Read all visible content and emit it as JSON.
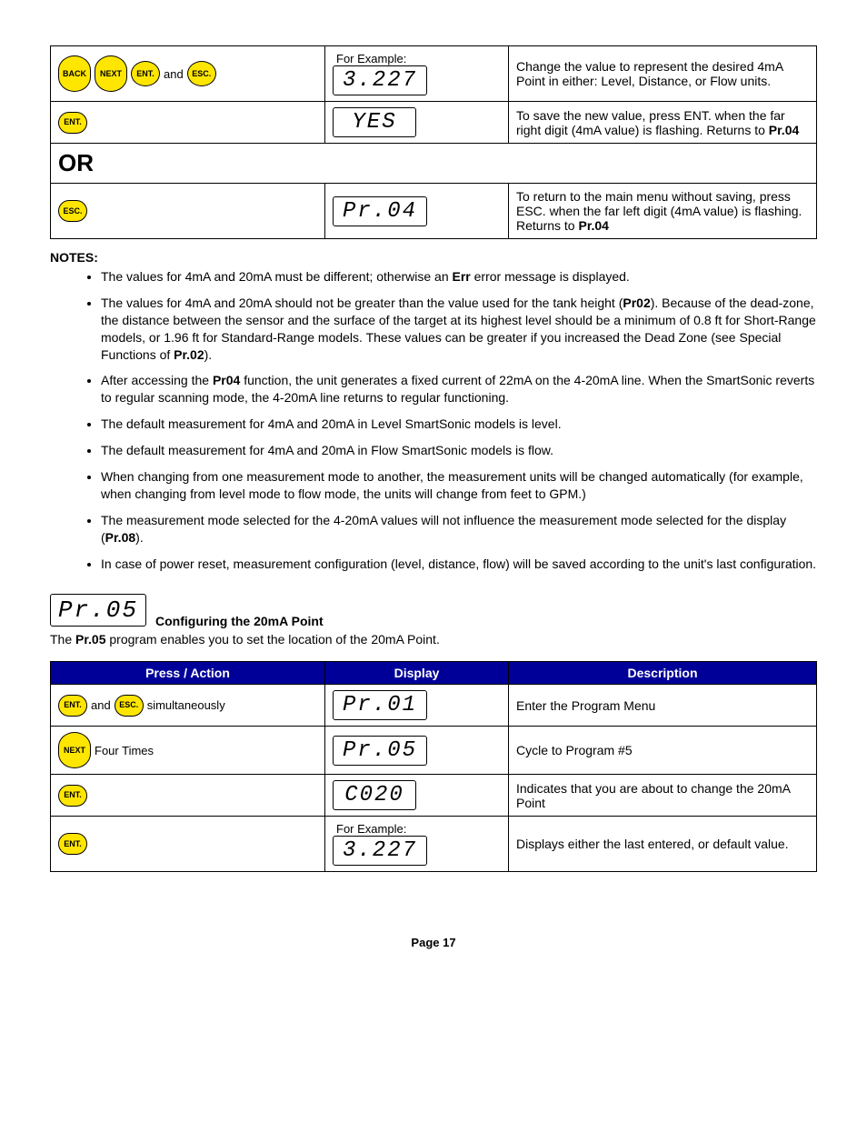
{
  "buttons": {
    "back": "BACK",
    "next": "NEXT",
    "ent": "ENT.",
    "esc": "ESC."
  },
  "words": {
    "and": "and",
    "simultaneously": "simultaneously",
    "four_times": "Four Times",
    "for_example": "For Example:",
    "or": "OR"
  },
  "table1": {
    "rows": [
      {
        "display": "3.227",
        "desc_plain": "Change the value to represent the desired 4mA Point in either: Level, Distance, or Flow units."
      },
      {
        "display": "YES",
        "desc_pre": "To save the new value, press ENT. when the far right digit (4mA value) is flashing.  Returns to ",
        "desc_bold": "Pr.04"
      },
      {
        "display": "Pr.04",
        "desc_pre": "To return to the main menu without saving, press ESC. when the far left digit (4mA value) is flashing.  Returns to ",
        "desc_bold": "Pr.04"
      }
    ]
  },
  "notes": {
    "heading": "NOTES:",
    "items": {
      "n1_pre": "The values for 4mA and 20mA must be different; otherwise an ",
      "n1_bold": "Err",
      "n1_post": " error message is displayed.",
      "n2_pre": "The values for 4mA and 20mA should not be greater than the value used for the tank height (",
      "n2_b1": "Pr02",
      "n2_mid": "). Because of the dead-zone, the distance between the sensor and the surface of the target at its highest level should be a minimum of 0.8 ft for Short-Range models, or 1.96 ft for Standard-Range models.  These values can be greater if you increased the Dead Zone (see Special Functions of ",
      "n2_b2": "Pr.02",
      "n2_post": ").",
      "n3_pre": "After accessing the ",
      "n3_b1": "Pr04",
      "n3_post": " function, the unit generates a fixed current of 22mA on the 4-20mA line. When the SmartSonic reverts to regular scanning mode, the 4-20mA line returns to regular functioning.",
      "n4": "The default measurement for 4mA and 20mA in Level SmartSonic models is level.",
      "n5": "The default measurement for 4mA and 20mA in Flow SmartSonic models is flow.",
      "n6": "When changing from one measurement mode to another, the measurement units will be changed automatically (for example, when changing from level mode to flow mode, the units will change from feet to GPM.)",
      "n7_pre": "The measurement mode selected for the 4-20mA values will not influence the measurement mode selected for the display (",
      "n7_b1": "Pr.08",
      "n7_post": ").",
      "n8": "In case of power reset, measurement configuration (level, distance, flow) will be saved according to the unit's last configuration."
    }
  },
  "section2": {
    "lcd": "Pr.05",
    "title": "Configuring the 20mA Point",
    "intro_pre": "The ",
    "intro_bold": "Pr.05",
    "intro_post": " program enables you to set the location of the 20mA Point."
  },
  "table2": {
    "headers": {
      "action": "Press / Action",
      "display": "Display",
      "desc": "Description"
    },
    "rows": {
      "r1": {
        "display": "Pr.01",
        "desc": "Enter the Program Menu"
      },
      "r2": {
        "display": "Pr.05",
        "desc": "Cycle to Program #5"
      },
      "r3": {
        "display": "C020",
        "desc": "Indicates that you are about to change the 20mA Point"
      },
      "r4": {
        "display": "3.227",
        "desc": "Displays either the last entered, or default value."
      }
    }
  },
  "page": "Page 17",
  "colors": {
    "header_bg": "#000099",
    "button_bg": "#ffe600"
  }
}
